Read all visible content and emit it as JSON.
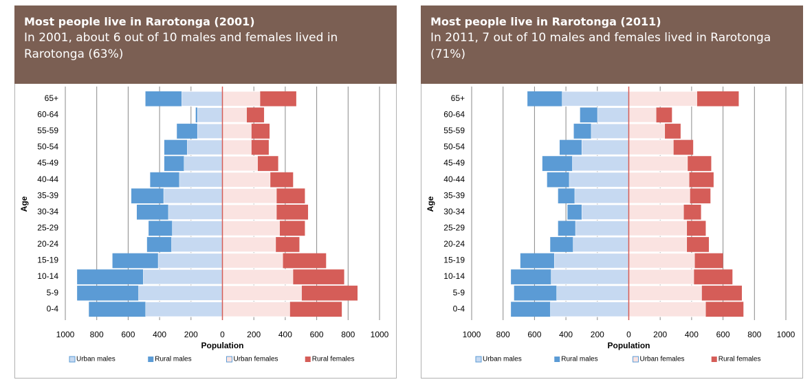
{
  "chart_data": [
    {
      "type": "population-pyramid",
      "title": "Most people live in Rarotonga (2001)",
      "subtitle": "In 2001, about 6 out of 10 males and females lived in Rarotonga (63%)",
      "x_label": "Population",
      "y_label": "Age",
      "categories": [
        "65+",
        "60-64",
        "55-59",
        "50-54",
        "45-49",
        "40-44",
        "35-39",
        "30-34",
        "25-29",
        "20-24",
        "15-19",
        "10-14",
        "5-9",
        "0-4"
      ],
      "series": [
        {
          "name": "Urban males",
          "color": "#c6d9f1",
          "values": [
            -260,
            -160,
            -160,
            -225,
            -245,
            -275,
            -375,
            -345,
            -320,
            -325,
            -410,
            -505,
            -535,
            -490
          ]
        },
        {
          "name": "Rural males",
          "color": "#5b9bd5",
          "values": [
            -230,
            -10,
            -130,
            -145,
            -125,
            -185,
            -205,
            -200,
            -150,
            -155,
            -290,
            -420,
            -390,
            -360
          ]
        },
        {
          "name": "Urban females",
          "color": "#fae3e1",
          "values": [
            240,
            155,
            185,
            185,
            225,
            305,
            345,
            345,
            365,
            340,
            385,
            450,
            505,
            430
          ]
        },
        {
          "name": "Rural females",
          "color": "#d55d58",
          "values": [
            230,
            110,
            115,
            110,
            130,
            145,
            180,
            200,
            160,
            150,
            275,
            325,
            355,
            330
          ]
        }
      ],
      "xlim": [
        -1000,
        1000
      ],
      "xticks": [
        {
          "value": -1000,
          "label": "1000"
        },
        {
          "value": -800,
          "label": "800"
        },
        {
          "value": -600,
          "label": "600"
        },
        {
          "value": -400,
          "label": "400"
        },
        {
          "value": -200,
          "label": "200"
        },
        0,
        200,
        400,
        600,
        800,
        1000
      ],
      "grid": true,
      "legend": "bottom"
    },
    {
      "type": "population-pyramid",
      "title": "Most people live in Rarotonga (2011)",
      "subtitle": "In 2011, 7 out of 10 males and females lived in Rarotonga (71%)",
      "x_label": "Population",
      "y_label": "Age",
      "categories": [
        "65+",
        "60-64",
        "55-59",
        "50-54",
        "45-49",
        "40-44",
        "35-39",
        "30-34",
        "25-29",
        "20-24",
        "15-19",
        "10-14",
        "5-9",
        "0-4"
      ],
      "series": [
        {
          "name": "Urban males",
          "color": "#c6d9f1",
          "values": [
            -425,
            -200,
            -240,
            -300,
            -360,
            -380,
            -345,
            -300,
            -340,
            -355,
            -475,
            -495,
            -460,
            -500
          ]
        },
        {
          "name": "Rural males",
          "color": "#5b9bd5",
          "values": [
            -220,
            -110,
            -110,
            -140,
            -190,
            -140,
            -105,
            -90,
            -110,
            -145,
            -215,
            -255,
            -270,
            -250
          ]
        },
        {
          "name": "Urban females",
          "color": "#fae3e1",
          "values": [
            435,
            175,
            230,
            285,
            375,
            385,
            390,
            350,
            370,
            370,
            420,
            415,
            465,
            490
          ]
        },
        {
          "name": "Rural females",
          "color": "#d55d58",
          "values": [
            265,
            100,
            100,
            125,
            150,
            155,
            130,
            110,
            120,
            140,
            180,
            245,
            255,
            240
          ]
        }
      ],
      "xlim": [
        -1000,
        1000
      ],
      "xticks": [
        {
          "value": -1000,
          "label": "1000"
        },
        {
          "value": -800,
          "label": "800"
        },
        {
          "value": -600,
          "label": "600"
        },
        {
          "value": -400,
          "label": "400"
        },
        {
          "value": -200,
          "label": "200"
        },
        0,
        200,
        400,
        600,
        800,
        1000
      ],
      "grid": true,
      "legend": "bottom"
    }
  ]
}
